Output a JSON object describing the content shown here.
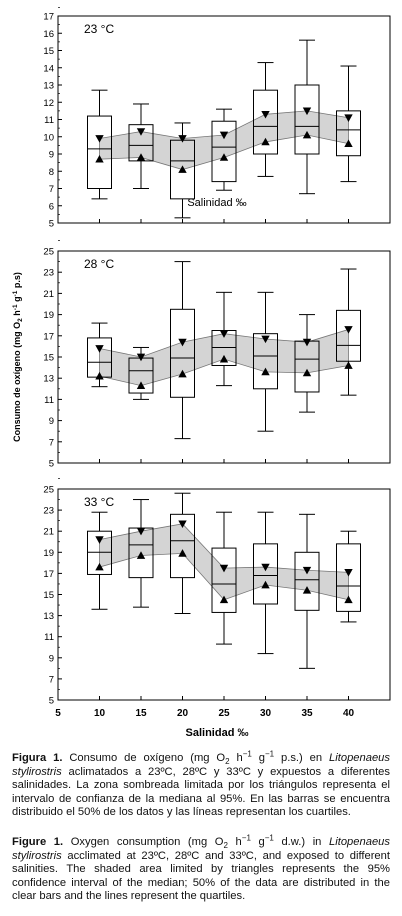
{
  "chart_data": [
    {
      "type": "boxplot",
      "panel_label": "23 °C",
      "x": [
        10,
        15,
        20,
        25,
        30,
        35,
        40
      ],
      "ylim": [
        5,
        17
      ],
      "yticks": [
        5,
        6,
        7,
        8,
        9,
        10,
        11,
        12,
        13,
        14,
        15,
        16,
        17
      ],
      "boxes": [
        {
          "x": 10,
          "whisker_low": 6.4,
          "q1": 7.0,
          "median": 9.3,
          "q3": 11.2,
          "whisker_high": 12.7
        },
        {
          "x": 15,
          "whisker_low": 7.0,
          "q1": 8.6,
          "median": 9.5,
          "q3": 10.7,
          "whisker_high": 11.9
        },
        {
          "x": 20,
          "whisker_low": 5.3,
          "q1": 6.4,
          "median": 8.6,
          "q3": 9.8,
          "whisker_high": 10.8
        },
        {
          "x": 25,
          "whisker_low": 6.9,
          "q1": 7.4,
          "median": 9.4,
          "q3": 10.9,
          "whisker_high": 11.6
        },
        {
          "x": 30,
          "whisker_low": 7.7,
          "q1": 9.0,
          "median": 10.6,
          "q3": 12.7,
          "whisker_high": 14.3
        },
        {
          "x": 35,
          "whisker_low": 6.7,
          "q1": 9.0,
          "median": 10.6,
          "q3": 13.0,
          "whisker_high": 15.6
        },
        {
          "x": 40,
          "whisker_low": 7.4,
          "q1": 8.9,
          "median": 10.4,
          "q3": 11.5,
          "whisker_high": 14.1
        }
      ],
      "ci_upper": [
        9.9,
        10.3,
        9.9,
        10.1,
        11.3,
        11.5,
        11.1
      ],
      "ci_lower": [
        8.7,
        8.8,
        8.1,
        8.8,
        9.7,
        10.1,
        9.6
      ]
    },
    {
      "type": "boxplot",
      "panel_label": "28 °C",
      "x": [
        10,
        15,
        20,
        25,
        30,
        35,
        40
      ],
      "ylim": [
        5,
        25
      ],
      "yticks": [
        5,
        7,
        9,
        11,
        13,
        15,
        17,
        19,
        21,
        23,
        25
      ],
      "boxes": [
        {
          "x": 10,
          "whisker_low": 12.2,
          "q1": 13.1,
          "median": 14.5,
          "q3": 16.8,
          "whisker_high": 18.2
        },
        {
          "x": 15,
          "whisker_low": 11.0,
          "q1": 11.6,
          "median": 13.7,
          "q3": 14.9,
          "whisker_high": 15.9
        },
        {
          "x": 20,
          "whisker_low": 7.3,
          "q1": 11.2,
          "median": 14.9,
          "q3": 19.5,
          "whisker_high": 24.0
        },
        {
          "x": 25,
          "whisker_low": 12.3,
          "q1": 14.2,
          "median": 15.9,
          "q3": 17.5,
          "whisker_high": 21.1
        },
        {
          "x": 30,
          "whisker_low": 8.0,
          "q1": 12.0,
          "median": 15.1,
          "q3": 17.2,
          "whisker_high": 21.1
        },
        {
          "x": 35,
          "whisker_low": 9.8,
          "q1": 11.7,
          "median": 14.8,
          "q3": 16.5,
          "whisker_high": 19.0
        },
        {
          "x": 40,
          "whisker_low": 11.4,
          "q1": 14.6,
          "median": 16.1,
          "q3": 19.4,
          "whisker_high": 23.3
        }
      ],
      "ci_upper": [
        15.8,
        15.0,
        16.4,
        17.2,
        16.7,
        16.4,
        17.6
      ],
      "ci_lower": [
        13.2,
        12.3,
        13.4,
        14.8,
        13.6,
        13.5,
        14.2
      ]
    },
    {
      "type": "boxplot",
      "panel_label": "33 °C",
      "x": [
        10,
        15,
        20,
        25,
        30,
        35,
        40
      ],
      "ylim": [
        5,
        25
      ],
      "yticks": [
        5,
        7,
        9,
        11,
        13,
        15,
        17,
        19,
        21,
        23,
        25
      ],
      "xlim": [
        5,
        45
      ],
      "xticks": [
        5,
        10,
        15,
        20,
        25,
        30,
        35,
        40
      ],
      "boxes": [
        {
          "x": 10,
          "whisker_low": 13.6,
          "q1": 16.9,
          "median": 19.0,
          "q3": 21.0,
          "whisker_high": 22.8
        },
        {
          "x": 15,
          "whisker_low": 13.8,
          "q1": 16.6,
          "median": 19.7,
          "q3": 21.3,
          "whisker_high": 24.0
        },
        {
          "x": 20,
          "whisker_low": 13.2,
          "q1": 16.6,
          "median": 20.1,
          "q3": 22.6,
          "whisker_high": 24.6
        },
        {
          "x": 25,
          "whisker_low": 10.3,
          "q1": 13.3,
          "median": 16.0,
          "q3": 19.4,
          "whisker_high": 22.8
        },
        {
          "x": 30,
          "whisker_low": 9.4,
          "q1": 14.1,
          "median": 16.8,
          "q3": 19.8,
          "whisker_high": 22.8
        },
        {
          "x": 35,
          "whisker_low": 8.0,
          "q1": 13.5,
          "median": 16.4,
          "q3": 19.0,
          "whisker_high": 22.6
        },
        {
          "x": 40,
          "whisker_low": 12.4,
          "q1": 13.4,
          "median": 15.8,
          "q3": 19.8,
          "whisker_high": 21.0
        }
      ],
      "ci_upper": [
        20.2,
        21.0,
        21.7,
        17.5,
        17.6,
        17.3,
        17.1
      ],
      "ci_lower": [
        17.6,
        18.7,
        18.9,
        14.5,
        15.9,
        15.4,
        14.5
      ]
    }
  ],
  "axes": {
    "ylabel_main": "Consumo de oxígeno (mg O",
    "ylabel_sub2": "2",
    "ylabel_mid": " h",
    "ylabel_exp1": "-1",
    "ylabel_g": " g",
    "ylabel_exp2": "-1",
    "ylabel_end": " p.s)",
    "xlabel": "Salinidad ‰",
    "xtick_labels": [
      "5",
      "10",
      "15",
      "20",
      "25",
      "30",
      "35",
      "40"
    ]
  },
  "colors": {
    "band_fill": "#d4d4d4",
    "axis": "#000000"
  },
  "caption_es": {
    "label": "Figura 1.",
    "t1": " Consumo de oxígeno (mg O",
    "sub": "2",
    "t2": " h",
    "sup1": "−1",
    "t3": " g",
    "sup2": "−1",
    "t4": " p.s.) en ",
    "species": "Litopenaeus stylirostris",
    "t5": " aclimatados a 23ºC, 28ºC y 33ºC y expuestos a diferentes salinidades. La zona sombreada limitada por los triángulos representa el intervalo de confianza de la mediana al 95%. En las barras se encuentra distribuido el 50% de los datos y las líneas representan los cuartiles."
  },
  "caption_en": {
    "label": "Figure 1.",
    "t1": " Oxygen consumption (mg O",
    "sub": "2",
    "t2": " h",
    "sup1": "−1",
    "t3": " g",
    "sup2": "−1",
    "t4": " d.w.) in ",
    "species": "Litopenaeus stylirostris",
    "t5": " acclimated at 23ºC, 28ºC and 33ºC, and exposed to different salinities. The shaded area limited by triangles represents the 95% confidence interval of the median; 50% of the data are distributed in the clear bars and the lines represent the quartiles."
  }
}
